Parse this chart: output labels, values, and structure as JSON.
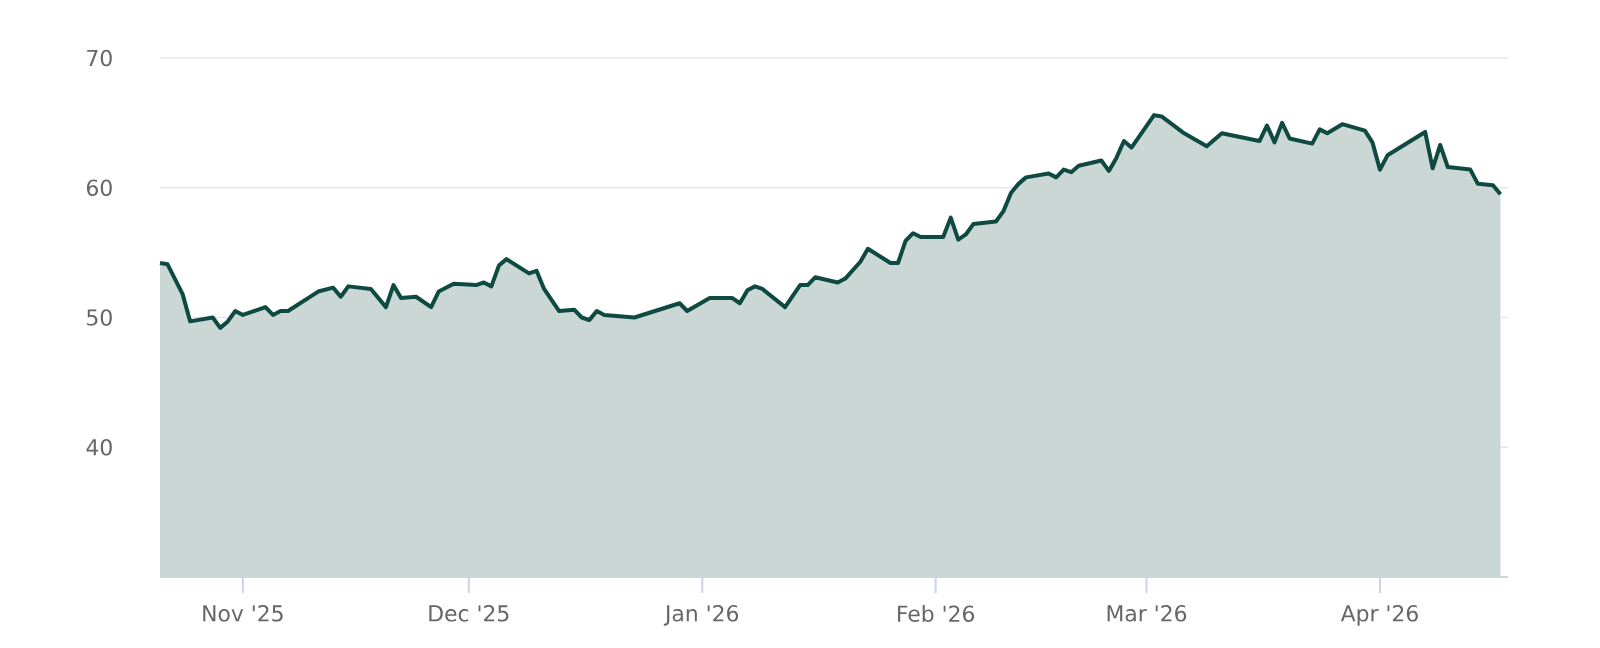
{
  "chart_data": {
    "type": "area",
    "color": "#0f4a42",
    "x": [
      "2025-10-21",
      "2025-10-22",
      "2025-10-24",
      "2025-10-25",
      "2025-10-28",
      "2025-10-29",
      "2025-10-30",
      "2025-10-31",
      "2025-11-01",
      "2025-11-04",
      "2025-11-05",
      "2025-11-06",
      "2025-11-07",
      "2025-11-11",
      "2025-11-13",
      "2025-11-14",
      "2025-11-15",
      "2025-11-18",
      "2025-11-20",
      "2025-11-21",
      "2025-11-22",
      "2025-11-24",
      "2025-11-26",
      "2025-11-27",
      "2025-11-29",
      "2025-12-02",
      "2025-12-03",
      "2025-12-04",
      "2025-12-05",
      "2025-12-06",
      "2025-12-09",
      "2025-12-10",
      "2025-12-11",
      "2025-12-13",
      "2025-12-15",
      "2025-12-16",
      "2025-12-17",
      "2025-12-18",
      "2025-12-19",
      "2025-12-23",
      "2025-12-29",
      "2025-12-30",
      "2026-01-02",
      "2026-01-05",
      "2026-01-06",
      "2026-01-07",
      "2026-01-08",
      "2026-01-09",
      "2026-01-12",
      "2026-01-14",
      "2026-01-15",
      "2026-01-16",
      "2026-01-19",
      "2026-01-20",
      "2026-01-22",
      "2026-01-23",
      "2026-01-26",
      "2026-01-27",
      "2026-01-28",
      "2026-01-29",
      "2026-01-30",
      "2026-02-02",
      "2026-02-03",
      "2026-02-04",
      "2026-02-05",
      "2026-02-06",
      "2026-02-09",
      "2026-02-10",
      "2026-02-11",
      "2026-02-12",
      "2026-02-13",
      "2026-02-16",
      "2026-02-17",
      "2026-02-18",
      "2026-02-19",
      "2026-02-20",
      "2026-02-23",
      "2026-02-24",
      "2026-02-25",
      "2026-02-26",
      "2026-02-27",
      "2026-03-02",
      "2026-03-03",
      "2026-03-06",
      "2026-03-09",
      "2026-03-11",
      "2026-03-16",
      "2026-03-17",
      "2026-03-18",
      "2026-03-19",
      "2026-03-20",
      "2026-03-23",
      "2026-03-24",
      "2026-03-25",
      "2026-03-27",
      "2026-03-30",
      "2026-03-31",
      "2026-04-01",
      "2026-04-02",
      "2026-04-07",
      "2026-04-08",
      "2026-04-09",
      "2026-04-10",
      "2026-04-13",
      "2026-04-14",
      "2026-04-16",
      "2026-04-17"
    ],
    "values": [
      54.2,
      54.1,
      51.8,
      49.7,
      50.0,
      49.2,
      49.7,
      50.5,
      50.2,
      50.8,
      50.2,
      50.5,
      50.5,
      52.0,
      52.3,
      51.6,
      52.4,
      52.2,
      50.8,
      52.5,
      51.5,
      51.6,
      50.8,
      52.0,
      52.6,
      52.5,
      52.7,
      52.4,
      54.0,
      54.5,
      53.4,
      53.6,
      52.2,
      50.5,
      50.6,
      50.0,
      49.8,
      50.5,
      50.2,
      50.0,
      51.1,
      50.5,
      51.5,
      51.5,
      51.1,
      52.1,
      52.4,
      52.2,
      50.8,
      52.5,
      52.5,
      53.1,
      52.7,
      53.0,
      54.3,
      55.3,
      54.2,
      54.2,
      55.9,
      56.5,
      56.2,
      56.2,
      57.7,
      56.0,
      56.4,
      57.2,
      57.4,
      58.2,
      59.6,
      60.3,
      60.8,
      61.1,
      60.8,
      61.4,
      61.2,
      61.7,
      62.1,
      61.3,
      62.3,
      63.6,
      63.1,
      65.6,
      65.5,
      64.2,
      63.2,
      64.2,
      63.6,
      64.8,
      63.5,
      65.0,
      63.8,
      63.4,
      64.5,
      64.2,
      64.9,
      64.4,
      63.5,
      61.4,
      62.5,
      64.3,
      61.5,
      63.3,
      61.6,
      61.4,
      60.3,
      60.2,
      59.5
    ],
    "xlim": [
      "2025-10-21",
      "2026-04-18"
    ],
    "xticks": [
      {
        "value": "2025-11-01",
        "label": "Nov '25"
      },
      {
        "value": "2025-12-01",
        "label": "Dec '25"
      },
      {
        "value": "2026-01-01",
        "label": "Jan '26"
      },
      {
        "value": "2026-02-01",
        "label": "Feb '26"
      },
      {
        "value": "2026-03-01",
        "label": "Mar '26"
      },
      {
        "value": "2026-04-01",
        "label": "Apr '26"
      }
    ],
    "ylim": [
      30,
      70
    ],
    "yticks": [
      40,
      50,
      60,
      70
    ],
    "grid": "y"
  }
}
